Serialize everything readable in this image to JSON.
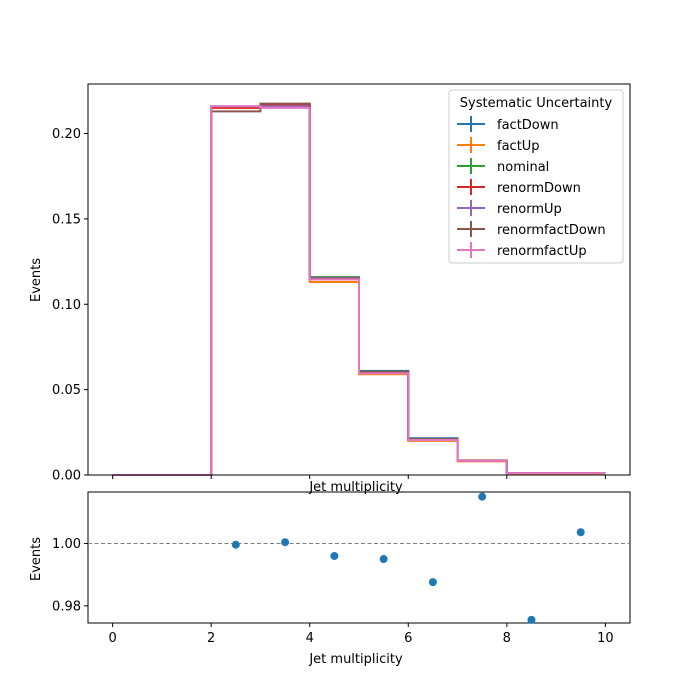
{
  "chart_data": [
    {
      "type": "line",
      "subtype": "step-histogram",
      "xlabel": "Jet multiplicity",
      "ylabel": "Events",
      "xlim": [
        -0.5,
        10.5
      ],
      "ylim": [
        0,
        0.229
      ],
      "xticks": [
        0,
        2,
        4,
        6,
        8,
        10
      ],
      "yticks": [
        0.0,
        0.05,
        0.1,
        0.15,
        0.2
      ],
      "ytick_labels": [
        "0.00",
        "0.05",
        "0.10",
        "0.15",
        "0.20"
      ],
      "bin_edges": [
        0,
        1,
        2,
        3,
        4,
        5,
        6,
        7,
        8,
        9,
        10
      ],
      "grid": false,
      "legend": {
        "title": "Systematic Uncertainty",
        "position": "top-right"
      },
      "series": [
        {
          "name": "factDown",
          "color": "#1f77b4",
          "values": [
            0,
            0,
            0.2155,
            0.2165,
            0.1155,
            0.061,
            0.0215,
            0.0085,
            0.0012,
            0.0012
          ]
        },
        {
          "name": "factUp",
          "color": "#ff7f0e",
          "values": [
            0,
            0,
            0.215,
            0.216,
            0.113,
            0.059,
            0.02,
            0.008,
            0.001,
            0.001
          ]
        },
        {
          "name": "nominal",
          "color": "#2ca02c",
          "values": [
            0,
            0,
            0.2155,
            0.2165,
            0.116,
            0.0605,
            0.021,
            0.0085,
            0.0012,
            0.0012
          ]
        },
        {
          "name": "renormDown",
          "color": "#d62728",
          "values": [
            0,
            0,
            0.215,
            0.217,
            0.115,
            0.06,
            0.0205,
            0.0083,
            0.0011,
            0.0011
          ]
        },
        {
          "name": "renormUp",
          "color": "#9467bd",
          "values": [
            0,
            0,
            0.216,
            0.216,
            0.1155,
            0.06,
            0.0208,
            0.0085,
            0.0012,
            0.0012
          ]
        },
        {
          "name": "renormfactDown",
          "color": "#8c564b",
          "values": [
            0,
            0,
            0.213,
            0.2175,
            0.115,
            0.0605,
            0.021,
            0.0086,
            0.0012,
            0.0012
          ]
        },
        {
          "name": "renormfactUp",
          "color": "#e377c2",
          "values": [
            0,
            0,
            0.216,
            0.215,
            0.1145,
            0.0595,
            0.0205,
            0.0083,
            0.0011,
            0.0011
          ]
        }
      ]
    },
    {
      "type": "scatter",
      "xlabel": "Jet multiplicity",
      "ylabel": "Events",
      "xlim": [
        -0.5,
        10.5
      ],
      "ylim": [
        0.9745,
        1.0165
      ],
      "xticks": [
        0,
        2,
        4,
        6,
        8,
        10
      ],
      "yticks": [
        0.98,
        1.0
      ],
      "ytick_labels": [
        "0.98",
        "1.00"
      ],
      "reference_line": 1.0,
      "color": "#1f77b4",
      "x": [
        2.5,
        3.5,
        4.5,
        5.5,
        6.5,
        7.5,
        8.5,
        9.5
      ],
      "y": [
        0.9996,
        1.0004,
        0.996,
        0.995,
        0.9876,
        1.015,
        0.9755,
        1.0036
      ]
    }
  ]
}
